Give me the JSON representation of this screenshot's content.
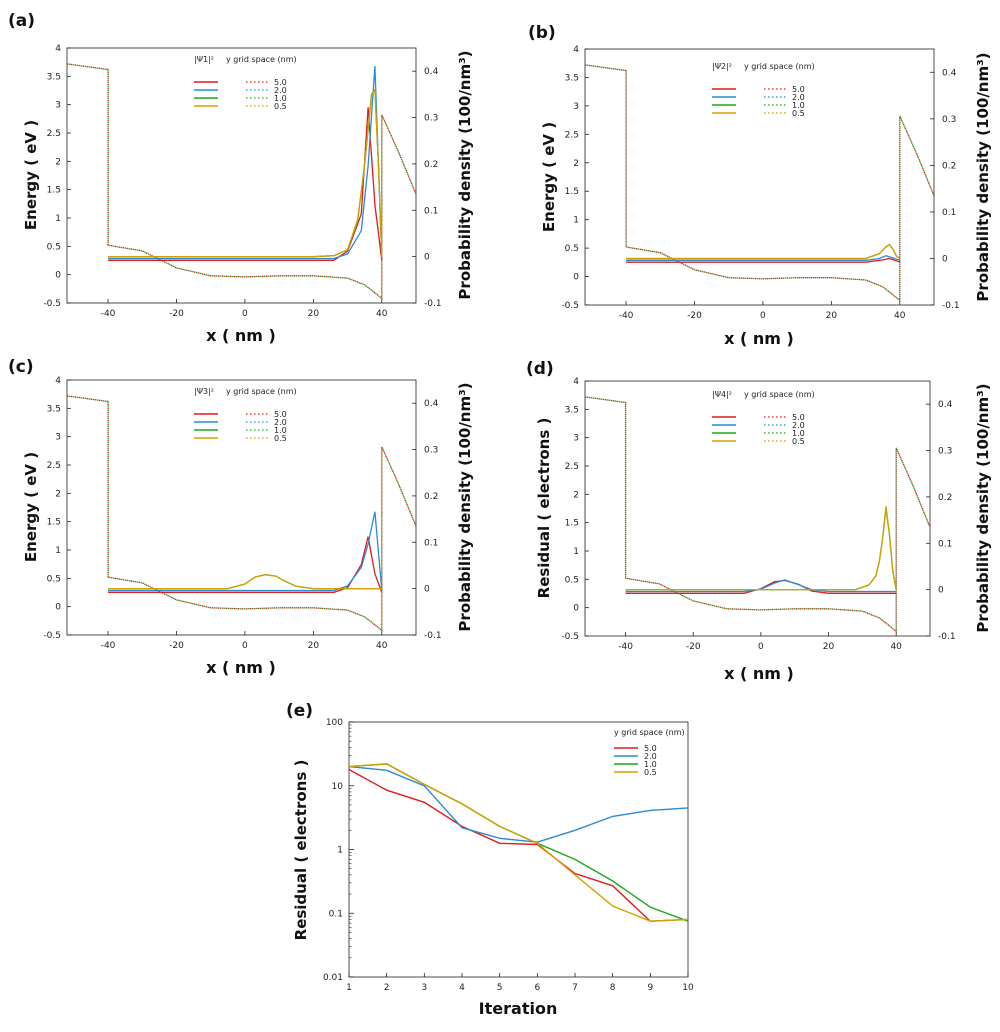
{
  "colors": {
    "s50": "#e41a1c",
    "s20": "#2a8ad4",
    "s10": "#1fa81f",
    "s05": "#d4a000"
  },
  "chart_data": [
    {
      "panel": "(a)",
      "type": "line",
      "title": "",
      "xlabel": "x ( nm )",
      "ylabel": "Energy ( eV )",
      "y2label": "Probability density (100/nm³)",
      "xlim": [
        -52,
        50
      ],
      "ylim": [
        -0.5,
        4
      ],
      "y2lim": [
        -0.1,
        0.45
      ],
      "xticks": [
        -40,
        -20,
        0,
        20,
        40
      ],
      "yticks": [
        -0.5,
        0,
        0.5,
        1,
        1.5,
        2,
        2.5,
        3,
        3.5,
        4
      ],
      "y2ticks": [
        -0.1,
        0,
        0.1,
        0.2,
        0.3,
        0.4
      ],
      "legend_title": "y grid space (nm)",
      "legend_wf": "|Ψ1|²",
      "legend_labels": [
        "5.0",
        "2.0",
        "1.0",
        "0.5"
      ],
      "energy_profile": {
        "x": [
          -52,
          -40,
          -40,
          -30,
          -20,
          -10,
          0,
          10,
          20,
          30,
          35,
          38,
          40,
          40,
          45,
          50
        ],
        "y": [
          3.72,
          3.62,
          0.52,
          0.42,
          0.12,
          -0.02,
          -0.04,
          -0.02,
          -0.02,
          -0.06,
          -0.18,
          -0.32,
          -0.42,
          2.82,
          2.15,
          1.42
        ]
      },
      "series": [
        {
          "name": "5.0",
          "color_key": "s50",
          "x": [
            -40,
            26,
            30,
            34,
            36,
            38,
            40
          ],
          "y": [
            0.0,
            0.0,
            0.02,
            0.1,
            0.33,
            0.12,
            0.0
          ]
        },
        {
          "name": "2.0",
          "color_key": "s20",
          "x": [
            -40,
            26,
            30,
            34,
            36,
            38,
            40
          ],
          "y": [
            0.0,
            0.0,
            0.01,
            0.06,
            0.2,
            0.415,
            0.0
          ]
        },
        {
          "name": "1.0",
          "color_key": "s10",
          "x": [
            -40,
            20,
            26,
            30,
            33,
            35,
            37,
            38,
            39,
            40
          ],
          "y": [
            0.0,
            0.0,
            0.002,
            0.015,
            0.08,
            0.2,
            0.35,
            0.36,
            0.2,
            0.0
          ]
        },
        {
          "name": "0.5",
          "color_key": "s05",
          "x": [
            -40,
            20,
            26,
            30,
            33,
            35,
            37,
            38,
            39,
            40
          ],
          "y": [
            0.0,
            0.0,
            0.002,
            0.015,
            0.08,
            0.2,
            0.35,
            0.36,
            0.2,
            0.0
          ]
        }
      ]
    },
    {
      "panel": "(b)",
      "type": "line",
      "title": "",
      "xlabel": "x ( nm )",
      "ylabel": "Energy ( eV )",
      "y2label": "Probability density (100/nm³)",
      "xlim": [
        -52,
        50
      ],
      "ylim": [
        -0.5,
        4
      ],
      "y2lim": [
        -0.1,
        0.45
      ],
      "xticks": [
        -40,
        -20,
        0,
        20,
        40
      ],
      "yticks": [
        -0.5,
        0,
        0.5,
        1,
        1.5,
        2,
        2.5,
        3,
        3.5,
        4
      ],
      "y2ticks": [
        -0.1,
        0,
        0.1,
        0.2,
        0.3,
        0.4
      ],
      "legend_title": "y grid space (nm)",
      "legend_wf": "|Ψ2|²",
      "legend_labels": [
        "5.0",
        "2.0",
        "1.0",
        "0.5"
      ],
      "energy_profile": {
        "x": [
          -52,
          -40,
          -40,
          -30,
          -20,
          -10,
          0,
          10,
          20,
          30,
          35,
          38,
          40,
          40,
          45,
          50
        ],
        "y": [
          3.72,
          3.62,
          0.52,
          0.42,
          0.12,
          -0.02,
          -0.04,
          -0.02,
          -0.02,
          -0.06,
          -0.18,
          -0.32,
          -0.42,
          2.82,
          2.15,
          1.42
        ]
      },
      "series": [
        {
          "name": "5.0",
          "color_key": "s50",
          "x": [
            -40,
            30,
            35,
            37,
            39,
            40
          ],
          "y": [
            0.0,
            0.0,
            0.005,
            0.008,
            0.003,
            0.0
          ]
        },
        {
          "name": "2.0",
          "color_key": "s20",
          "x": [
            -40,
            30,
            34,
            36,
            38,
            40
          ],
          "y": [
            0.0,
            0.0,
            0.004,
            0.01,
            0.005,
            0.0
          ]
        },
        {
          "name": "1.0",
          "color_key": "s10",
          "x": [
            -40,
            30,
            34,
            36,
            37,
            38,
            39,
            40
          ],
          "y": [
            0.0,
            0.0,
            0.01,
            0.025,
            0.03,
            0.02,
            0.005,
            0.0
          ]
        },
        {
          "name": "0.5",
          "color_key": "s05",
          "x": [
            -40,
            30,
            34,
            36,
            37,
            38,
            39,
            40
          ],
          "y": [
            0.0,
            0.0,
            0.01,
            0.025,
            0.03,
            0.02,
            0.005,
            0.0
          ]
        }
      ]
    },
    {
      "panel": "(c)",
      "type": "line",
      "title": "",
      "xlabel": "x ( nm )",
      "ylabel": "Energy ( eV )",
      "y2label": "Probability density (100/nm³)",
      "xlim": [
        -52,
        50
      ],
      "ylim": [
        -0.5,
        4
      ],
      "y2lim": [
        -0.1,
        0.45
      ],
      "xticks": [
        -40,
        -20,
        0,
        20,
        40
      ],
      "yticks": [
        -0.5,
        0,
        0.5,
        1,
        1.5,
        2,
        2.5,
        3,
        3.5,
        4
      ],
      "y2ticks": [
        -0.1,
        0,
        0.1,
        0.2,
        0.3,
        0.4
      ],
      "legend_title": "y grid space (nm)",
      "legend_wf": "|Ψ3|²",
      "legend_labels": [
        "5.0",
        "2.0",
        "1.0",
        "0.5"
      ],
      "energy_profile": {
        "x": [
          -52,
          -40,
          -40,
          -30,
          -20,
          -10,
          0,
          10,
          20,
          30,
          35,
          38,
          40,
          40,
          45,
          50
        ],
        "y": [
          3.72,
          3.62,
          0.52,
          0.42,
          0.12,
          -0.02,
          -0.04,
          -0.02,
          -0.02,
          -0.06,
          -0.18,
          -0.32,
          -0.42,
          2.82,
          2.15,
          1.42
        ]
      },
      "series": [
        {
          "name": "5.0",
          "color_key": "s50",
          "x": [
            -40,
            26,
            30,
            34,
            36,
            38,
            40
          ],
          "y": [
            0.0,
            0.0,
            0.01,
            0.06,
            0.12,
            0.04,
            0.0
          ]
        },
        {
          "name": "2.0",
          "color_key": "s20",
          "x": [
            -40,
            26,
            30,
            34,
            36,
            38,
            40
          ],
          "y": [
            0.0,
            0.0,
            0.01,
            0.05,
            0.1,
            0.17,
            0.0
          ]
        },
        {
          "name": "1.0",
          "color_key": "s10",
          "x": [
            -40,
            -5,
            0,
            3,
            6,
            9,
            12,
            15,
            20,
            40
          ],
          "y": [
            0.0,
            0.0,
            0.01,
            0.025,
            0.03,
            0.027,
            0.015,
            0.005,
            0.0,
            0.0
          ]
        },
        {
          "name": "0.5",
          "color_key": "s05",
          "x": [
            -40,
            -5,
            0,
            3,
            6,
            9,
            12,
            15,
            20,
            40
          ],
          "y": [
            0.0,
            0.0,
            0.01,
            0.025,
            0.03,
            0.027,
            0.015,
            0.005,
            0.0,
            0.0
          ]
        }
      ]
    },
    {
      "panel": "(d)",
      "type": "line",
      "title": "",
      "xlabel": "x ( nm )",
      "ylabel": "Residual ( electrons )",
      "y2label": "Probability density (100/nm³)",
      "xlim": [
        -52,
        50
      ],
      "ylim": [
        -0.5,
        4
      ],
      "y2lim": [
        -0.1,
        0.45
      ],
      "xticks": [
        -40,
        -20,
        0,
        20,
        40
      ],
      "yticks": [
        -0.5,
        0,
        0.5,
        1,
        1.5,
        2,
        2.5,
        3,
        3.5,
        4
      ],
      "y2ticks": [
        -0.1,
        0,
        0.1,
        0.2,
        0.3,
        0.4
      ],
      "legend_title": "y grid space (nm)",
      "legend_wf": "|Ψ4|²",
      "legend_labels": [
        "5.0",
        "2.0",
        "1.0",
        "0.5"
      ],
      "energy_profile": {
        "x": [
          -52,
          -40,
          -40,
          -30,
          -20,
          -10,
          0,
          10,
          20,
          30,
          35,
          38,
          40,
          40,
          45,
          50
        ],
        "y": [
          3.72,
          3.62,
          0.52,
          0.42,
          0.12,
          -0.02,
          -0.04,
          -0.02,
          -0.02,
          -0.06,
          -0.18,
          -0.32,
          -0.42,
          2.82,
          2.15,
          1.42
        ]
      },
      "series": [
        {
          "name": "5.0",
          "color_key": "s50",
          "x": [
            -40,
            -5,
            0,
            4,
            7,
            11,
            15,
            20,
            40
          ],
          "y": [
            0.0,
            0.0,
            0.01,
            0.025,
            0.028,
            0.02,
            0.005,
            0.0,
            0.0
          ]
        },
        {
          "name": "2.0",
          "color_key": "s20",
          "x": [
            -40,
            -5,
            0,
            4,
            7,
            11,
            15,
            20,
            40
          ],
          "y": [
            0.0,
            0.0,
            0.005,
            0.018,
            0.025,
            0.015,
            0.004,
            0.0,
            0.0
          ]
        },
        {
          "name": "1.0",
          "color_key": "s10",
          "x": [
            -40,
            28,
            32,
            34,
            35,
            36,
            37,
            38,
            39,
            40
          ],
          "y": [
            0.0,
            0.0,
            0.01,
            0.03,
            0.06,
            0.11,
            0.175,
            0.12,
            0.04,
            0.0
          ]
        },
        {
          "name": "0.5",
          "color_key": "s05",
          "x": [
            -40,
            28,
            32,
            34,
            35,
            36,
            37,
            38,
            39,
            40
          ],
          "y": [
            0.0,
            0.0,
            0.01,
            0.03,
            0.06,
            0.11,
            0.18,
            0.12,
            0.04,
            0.0
          ]
        }
      ]
    },
    {
      "panel": "(e)",
      "type": "line",
      "title": "",
      "xlabel": "Iteration",
      "ylabel": "Residual ( electrons )",
      "yscale": "log",
      "xlim": [
        1,
        10
      ],
      "ylim": [
        0.01,
        100
      ],
      "xticks": [
        1,
        2,
        3,
        4,
        5,
        6,
        7,
        8,
        9,
        10
      ],
      "yticks": [
        0.01,
        0.1,
        1,
        10,
        100
      ],
      "ytick_labels": [
        "0.01",
        "0.1",
        "1",
        "10",
        "100"
      ],
      "legend_title": "y grid space (nm)",
      "legend_labels": [
        "5.0",
        "2.0",
        "1.0",
        "0.5"
      ],
      "x": [
        1,
        2,
        3,
        4,
        5,
        6,
        7,
        8,
        9,
        10
      ],
      "series": [
        {
          "name": "5.0",
          "color_key": "s50",
          "values": [
            18,
            8.5,
            5.5,
            2.3,
            1.25,
            1.2,
            0.42,
            0.27,
            0.075,
            0.08
          ]
        },
        {
          "name": "2.0",
          "color_key": "s20",
          "values": [
            20,
            17.5,
            10,
            2.2,
            1.5,
            1.3,
            2.0,
            3.3,
            4.1,
            4.5
          ]
        },
        {
          "name": "1.0",
          "color_key": "s10",
          "values": [
            20,
            22,
            10.5,
            5.2,
            2.3,
            1.25,
            0.7,
            0.32,
            0.125,
            0.075
          ]
        },
        {
          "name": "0.5",
          "color_key": "s05",
          "values": [
            20,
            22,
            10.5,
            5.2,
            2.3,
            1.25,
            0.4,
            0.13,
            0.075,
            0.08
          ]
        }
      ]
    }
  ]
}
